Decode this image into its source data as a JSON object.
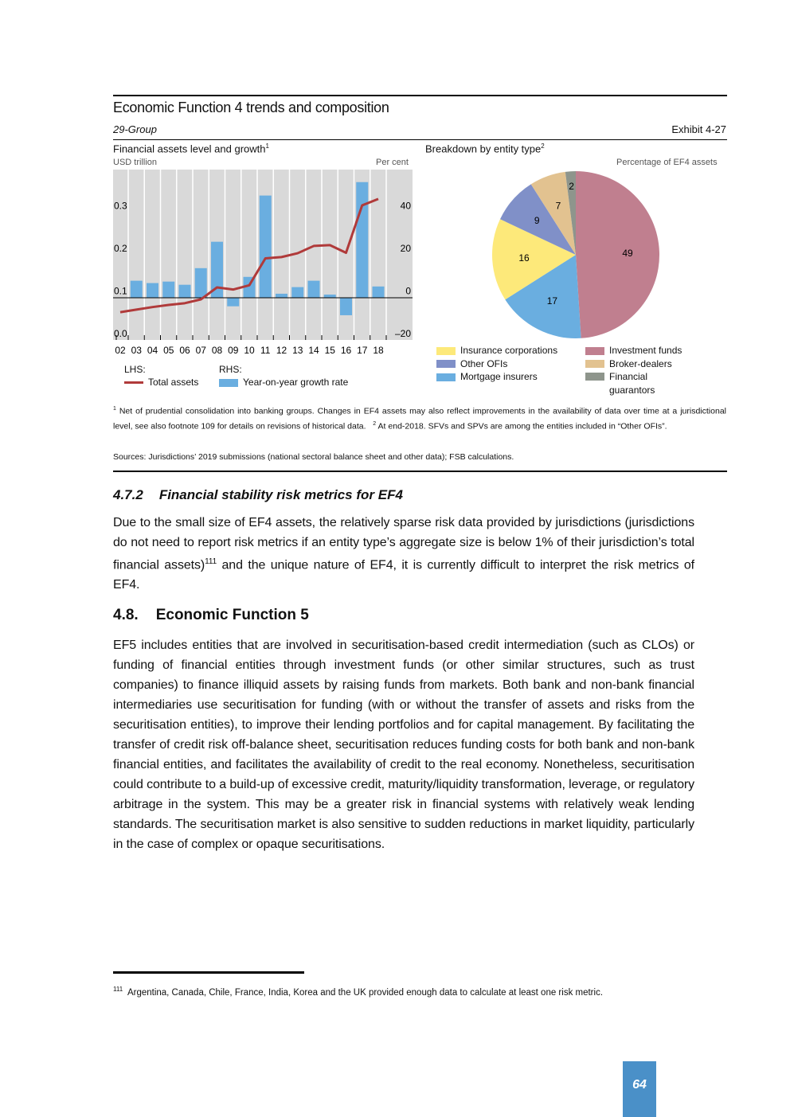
{
  "exhibit": {
    "title": "Economic Function 4 trends and composition",
    "group": "29-Group",
    "number": "Exhibit 4-27"
  },
  "chart_data": [
    {
      "type": "bar+line",
      "title": "Financial assets level and growth",
      "title_sup": "1",
      "ylabel_left": "USD trillion",
      "ylabel_right": "Per cent",
      "categories": [
        "02",
        "03",
        "04",
        "05",
        "06",
        "07",
        "08",
        "09",
        "10",
        "11",
        "12",
        "13",
        "14",
        "15",
        "16",
        "17",
        "18"
      ],
      "ylim_left": [
        0.0,
        0.3
      ],
      "yticks_left": [
        "0.0",
        "0.1",
        "0.2",
        "0.3"
      ],
      "ylim_right": [
        -20,
        40
      ],
      "yticks_right": [
        "–20",
        "0",
        "20",
        "40"
      ],
      "series": [
        {
          "name": "Total assets",
          "axis": "LHS",
          "kind": "line",
          "color": "#b03a3a",
          "values": [
            0.065,
            0.071,
            0.077,
            0.082,
            0.086,
            0.095,
            0.123,
            0.118,
            0.128,
            0.191,
            0.194,
            0.203,
            0.22,
            0.222,
            0.204,
            0.315,
            0.33
          ]
        },
        {
          "name": "Year-on-year growth rate",
          "axis": "RHS",
          "kind": "bar",
          "color": "#6aaee0",
          "values": [
            null,
            8.0,
            6.9,
            7.6,
            6.1,
            13.9,
            26.3,
            -4.0,
            9.8,
            48.0,
            1.9,
            5.0,
            8.0,
            1.5,
            -8.2,
            54.3,
            5.3
          ]
        }
      ],
      "legend": {
        "lhs_label": "LHS:",
        "rhs_label": "RHS:",
        "line_label": "Total assets",
        "bar_label": "Year-on-year growth rate"
      }
    },
    {
      "type": "pie",
      "title": "Breakdown by entity type",
      "title_sup": "2",
      "unit": "Percentage of EF4 assets",
      "slices": [
        {
          "label": "Investment funds",
          "value": 49,
          "color": "#c07f8f"
        },
        {
          "label": "Mortgage insurers",
          "value": 17,
          "color": "#6aaee0"
        },
        {
          "label": "Insurance corporations",
          "value": 16,
          "color": "#fde97a"
        },
        {
          "label": "Other OFIs",
          "value": 9,
          "color": "#8090c8"
        },
        {
          "label": "Broker-dealers",
          "value": 7,
          "color": "#e2c290"
        },
        {
          "label": "Financial guarantors",
          "value": 2,
          "color": "#8e958c"
        }
      ],
      "legend_order": [
        "Insurance corporations",
        "Investment funds",
        "Other OFIs",
        "Broker-dealers",
        "Mortgage insurers",
        "Financial guarantors"
      ]
    }
  ],
  "footnotes": {
    "n1_mark": "1",
    "n1": "Net of prudential consolidation into banking groups. Changes in EF4 assets may also reflect improvements in the availability of data over time at a jurisdictional level, see also footnote 109 for details on revisions of historical data.",
    "n2_mark": "2",
    "n2": "At end-2018. SFVs and SPVs are among the entities included in “Other OFIs”.",
    "sources": "Sources: Jurisdictions’ 2019 submissions (national sectoral balance sheet and other data); FSB calculations."
  },
  "section_472": {
    "number": "4.7.2",
    "title": "Financial stability risk metrics for EF4",
    "para_a": "Due to the small size of EF4 assets, the relatively sparse risk data provided by jurisdictions (jurisdictions do not need to report risk metrics if an entity type’s aggregate size is below 1% of their jurisdiction’s total financial assets)",
    "fn_ref": "111",
    "para_b": " and the unique nature of EF4, it is currently difficult to interpret the risk metrics of EF4."
  },
  "section_48": {
    "number": "4.8.",
    "title": "Economic Function 5",
    "para": "EF5 includes entities that are involved in securitisation-based credit intermediation (such as CLOs) or funding of financial entities through investment funds (or other similar structures, such as trust companies) to finance illiquid assets by raising funds from markets. Both bank and non-bank financial intermediaries use securitisation for funding (with or without the transfer of assets and risks from the securitisation entities), to improve their lending portfolios and for capital management. By facilitating the transfer of credit risk off-balance sheet, securitisation reduces funding costs for both bank and non-bank financial entities, and facilitates the availability of credit to the real economy. Nonetheless, securitisation could contribute to a build-up of excessive credit, maturity/liquidity transformation, leverage, or regulatory arbitrage in the system. This may be a greater risk in financial systems with relatively weak lending standards. The securitisation market is also sensitive to sudden reductions in market liquidity, particularly in the case of complex or opaque securitisations."
  },
  "page_footnote": {
    "mark": "111",
    "text": "Argentina, Canada, Chile, France, India, Korea and the UK provided enough data to calculate at least one risk metric."
  },
  "page_number": "64"
}
